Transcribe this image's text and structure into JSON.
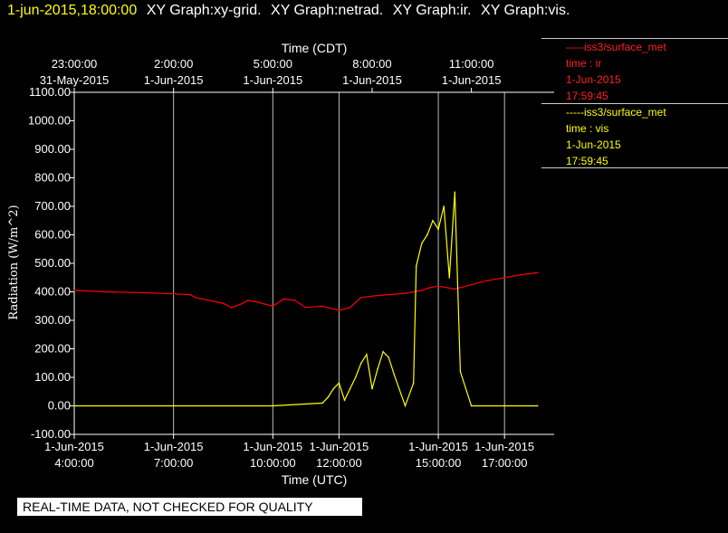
{
  "header": {
    "timestamp": "1-jun-2015,18:00:00",
    "graphs": [
      "XY Graph:xy-grid.",
      "XY Graph:netrad.",
      "XY Graph:ir.",
      "XY Graph:vis."
    ]
  },
  "legend": [
    {
      "line1": "-----iss3/surface_met",
      "line2": "time : ir",
      "line3": "1-Jun-2015",
      "line4": "17:59:45",
      "color": "#ff0000"
    },
    {
      "line1": "-----iss3/surface_met",
      "line2": "time : vis",
      "line3": "1-Jun-2015",
      "line4": "17:59:45",
      "color": "#ffff00"
    }
  ],
  "banner": "REAL-TIME DATA, NOT CHECKED FOR QUALITY",
  "chart_data": {
    "type": "line",
    "title": "",
    "ylabel": "Radiation (W/m^2)",
    "xlabel": "Time (UTC)",
    "xlabel_top": "Time (CDT)",
    "ylim": [
      -100,
      1100
    ],
    "xlim": [
      "2015-06-01T04:00:00",
      "2015-06-01T18:30:00"
    ],
    "y_ticks": [
      "-100.00",
      "0.00",
      "100.00",
      "200.00",
      "300.00",
      "400.00",
      "500.00",
      "600.00",
      "700.00",
      "800.00",
      "900.00",
      "1000.00",
      "1100.00"
    ],
    "x_ticks_bottom": [
      {
        "t": "2015-06-01T04:00:00",
        "date": "1-Jun-2015",
        "time": "4:00:00"
      },
      {
        "t": "2015-06-01T07:00:00",
        "date": "1-Jun-2015",
        "time": "7:00:00"
      },
      {
        "t": "2015-06-01T10:00:00",
        "date": "1-Jun-2015",
        "time": "10:00:00"
      },
      {
        "t": "2015-06-01T12:00:00",
        "date": "1-Jun-2015",
        "time": "12:00:00"
      },
      {
        "t": "2015-06-01T15:00:00",
        "date": "1-Jun-2015",
        "time": "15:00:00"
      },
      {
        "t": "2015-06-01T17:00:00",
        "date": "1-Jun-2015",
        "time": "17:00:00"
      }
    ],
    "x_ticks_top": [
      {
        "t": "2015-06-01T04:00:00",
        "time": "23:00:00",
        "date": "31-May-2015"
      },
      {
        "t": "2015-06-01T07:00:00",
        "time": "2:00:00",
        "date": "1-Jun-2015"
      },
      {
        "t": "2015-06-01T10:00:00",
        "time": "5:00:00",
        "date": "1-Jun-2015"
      },
      {
        "t": "2015-06-01T13:00:00",
        "time": "8:00:00",
        "date": "1-Jun-2015"
      },
      {
        "t": "2015-06-01T16:00:00",
        "time": "11:00:00",
        "date": "1-Jun-2015"
      }
    ],
    "grid_x": [
      "2015-06-01T07:00:00",
      "2015-06-01T10:00:00",
      "2015-06-01T12:00:00",
      "2015-06-01T15:00:00",
      "2015-06-01T17:00:00"
    ],
    "series": [
      {
        "name": "ir",
        "color": "#ff0000",
        "x": [
          "2015-06-01T04:00:00",
          "2015-06-01T05:00:00",
          "2015-06-01T06:00:00",
          "2015-06-01T07:00:00",
          "2015-06-01T07:30:00",
          "2015-06-01T07:40:00",
          "2015-06-01T08:30:00",
          "2015-06-01T08:45:00",
          "2015-06-01T09:00:00",
          "2015-06-01T09:15:00",
          "2015-06-01T09:30:00",
          "2015-06-01T10:00:00",
          "2015-06-01T10:20:00",
          "2015-06-01T10:40:00",
          "2015-06-01T11:00:00",
          "2015-06-01T11:30:00",
          "2015-06-01T12:00:00",
          "2015-06-01T12:20:00",
          "2015-06-01T12:40:00",
          "2015-06-01T13:00:00",
          "2015-06-01T13:30:00",
          "2015-06-01T14:00:00",
          "2015-06-01T14:30:00",
          "2015-06-01T14:45:00",
          "2015-06-01T15:00:00",
          "2015-06-01T15:30:00",
          "2015-06-01T16:00:00",
          "2015-06-01T16:30:00",
          "2015-06-01T17:00:00",
          "2015-06-01T17:30:00",
          "2015-06-01T18:00:00"
        ],
        "y": [
          405,
          400,
          397,
          393,
          390,
          380,
          360,
          345,
          355,
          370,
          365,
          350,
          375,
          370,
          345,
          350,
          335,
          345,
          380,
          385,
          390,
          395,
          405,
          415,
          420,
          410,
          425,
          440,
          450,
          460,
          467
        ]
      },
      {
        "name": "vis",
        "color": "#ffff00",
        "x": [
          "2015-06-01T04:00:00",
          "2015-06-01T10:00:00",
          "2015-06-01T11:30:00",
          "2015-06-01T11:40:00",
          "2015-06-01T11:50:00",
          "2015-06-01T12:00:00",
          "2015-06-01T12:10:00",
          "2015-06-01T12:20:00",
          "2015-06-01T12:30:00",
          "2015-06-01T12:40:00",
          "2015-06-01T12:50:00",
          "2015-06-01T13:00:00",
          "2015-06-01T13:10:00",
          "2015-06-01T13:20:00",
          "2015-06-01T13:30:00",
          "2015-06-01T13:40:00",
          "2015-06-01T14:00:00",
          "2015-06-01T14:15:00",
          "2015-06-01T14:20:00",
          "2015-06-01T14:30:00",
          "2015-06-01T14:40:00",
          "2015-06-01T14:50:00",
          "2015-06-01T15:00:00",
          "2015-06-01T15:10:00",
          "2015-06-01T15:20:00",
          "2015-06-01T15:30:00",
          "2015-06-01T15:40:00",
          "2015-06-01T16:00:00",
          "2015-06-01T17:00:00",
          "2015-06-01T18:00:00"
        ],
        "y": [
          0,
          0,
          10,
          30,
          60,
          80,
          20,
          60,
          100,
          150,
          180,
          60,
          130,
          190,
          170,
          110,
          0,
          80,
          490,
          570,
          600,
          650,
          620,
          700,
          450,
          750,
          120,
          0,
          0,
          0
        ]
      }
    ]
  }
}
